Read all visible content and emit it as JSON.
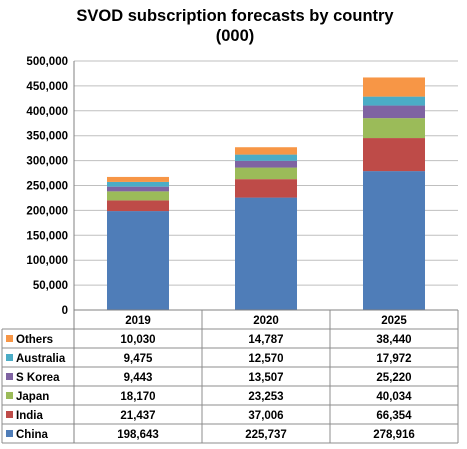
{
  "chart_data": {
    "type": "bar",
    "stacked": true,
    "title": "SVOD subscription forecasts by country",
    "subtitle": "(000)",
    "categories": [
      "2019",
      "2020",
      "2025"
    ],
    "ylim": [
      0,
      500000
    ],
    "yticks": [
      "0",
      "50,000",
      "100,000",
      "150,000",
      "200,000",
      "250,000",
      "300,000",
      "350,000",
      "400,000",
      "450,000",
      "500,000"
    ],
    "grid": true,
    "legend_position": "data-table-left",
    "series": [
      {
        "name": "China",
        "color": "#4f7db8",
        "values": [
          198643,
          225737,
          278916
        ],
        "labels": [
          "198,643",
          "225,737",
          "278,916"
        ]
      },
      {
        "name": "India",
        "color": "#be4b48",
        "values": [
          21437,
          37006,
          66354
        ],
        "labels": [
          "21,437",
          "37,006",
          "66,354"
        ]
      },
      {
        "name": "Japan",
        "color": "#9bbb59",
        "values": [
          18170,
          23253,
          40034
        ],
        "labels": [
          "18,170",
          "23,253",
          "40,034"
        ]
      },
      {
        "name": "S Korea",
        "color": "#7f63a2",
        "values": [
          9443,
          13507,
          25220
        ],
        "labels": [
          "9,443",
          "13,507",
          "25,220"
        ]
      },
      {
        "name": "Australia",
        "color": "#4bacc6",
        "values": [
          9475,
          12570,
          17972
        ],
        "labels": [
          "9,475",
          "12,570",
          "17,972"
        ]
      },
      {
        "name": "Others",
        "color": "#f79646",
        "values": [
          10030,
          14787,
          38440
        ],
        "labels": [
          "10,030",
          "14,787",
          "38,440"
        ]
      }
    ],
    "table_row_order": [
      "Others",
      "Australia",
      "S Korea",
      "Japan",
      "India",
      "China"
    ]
  }
}
